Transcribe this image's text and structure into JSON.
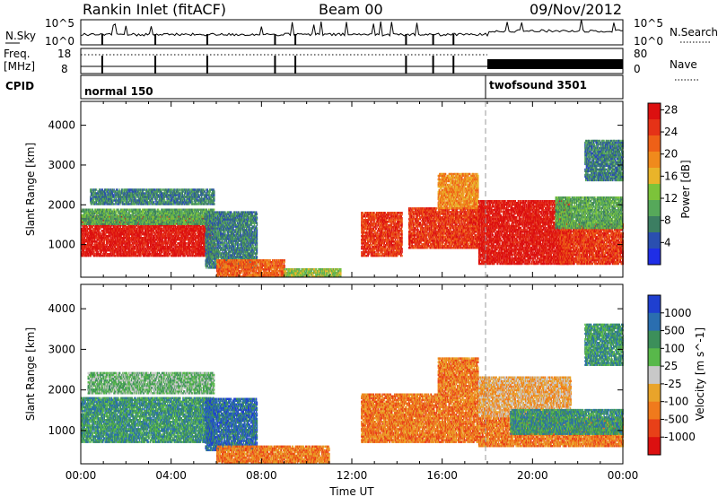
{
  "header": {
    "station": "Rankin Inlet (fitACF)",
    "beam": "Beam 00",
    "date": "09/Nov/2012"
  },
  "status_panel": {
    "nsky_label": "N.Sky",
    "nsky_ticks": [
      "10^5",
      "10^0"
    ],
    "nsearch_label": "N.Search",
    "nsearch_ticks": [
      "10^5",
      "10^0"
    ],
    "freq_label": "Freq.",
    "freq_unit": "[MHz]",
    "freq_ticks": [
      "18",
      "8"
    ],
    "nave_label": "Nave",
    "nave_ticks": [
      "80",
      "0"
    ],
    "cpid_label": "CPID",
    "modes": [
      {
        "name": "normal 150",
        "start_hour": 0
      },
      {
        "name": "twofsound 3501",
        "start_hour": 18
      }
    ]
  },
  "chart_data": [
    {
      "type": "heatmap",
      "name": "Power",
      "xlabel": "",
      "ylabel": "Slant Range [km]",
      "xlim_hours": [
        0,
        24
      ],
      "ylim_km": [
        180,
        4600
      ],
      "yticks": [
        "1000",
        "2000",
        "3000",
        "4000"
      ],
      "colorbar_label": "Power [dB]",
      "colorbar_ticks": [
        "4",
        "8",
        "12",
        "16",
        "20",
        "24",
        "28"
      ],
      "colorbar_colors": [
        "#1f2ee6",
        "#2a4fb0",
        "#3c7e62",
        "#56a85a",
        "#7cc33a",
        "#e9b42a",
        "#f08a1c",
        "#ee6017",
        "#e53217",
        "#dc1010"
      ],
      "regions": [
        {
          "t": [
            0.0,
            5.9
          ],
          "r": [
            700,
            1700
          ],
          "level": 9
        },
        {
          "t": [
            0.0,
            5.9
          ],
          "r": [
            1500,
            1900
          ],
          "level": 3
        },
        {
          "t": [
            0.4,
            5.9
          ],
          "r": [
            2000,
            2400
          ],
          "level": 2
        },
        {
          "t": [
            5.5,
            7.8
          ],
          "r": [
            400,
            1800
          ],
          "level": 2
        },
        {
          "t": [
            6.0,
            9.0
          ],
          "r": [
            180,
            600
          ],
          "level": 7
        },
        {
          "t": [
            9.0,
            11.5
          ],
          "r": [
            180,
            400
          ],
          "level": 4
        },
        {
          "t": [
            12.4,
            14.2
          ],
          "r": [
            700,
            1800
          ],
          "level": 8
        },
        {
          "t": [
            14.5,
            17.6
          ],
          "r": [
            900,
            1900
          ],
          "level": 8
        },
        {
          "t": [
            15.8,
            17.6
          ],
          "r": [
            1900,
            2800
          ],
          "level": 6
        },
        {
          "t": [
            17.6,
            21.7
          ],
          "r": [
            500,
            2100
          ],
          "level": 9
        },
        {
          "t": [
            21.2,
            24.0
          ],
          "r": [
            500,
            1500
          ],
          "level": 8
        },
        {
          "t": [
            21.0,
            24.0
          ],
          "r": [
            1400,
            2200
          ],
          "level": 3
        },
        {
          "t": [
            22.3,
            24.0
          ],
          "r": [
            2600,
            3600
          ],
          "level": 2
        }
      ]
    },
    {
      "type": "heatmap",
      "name": "Velocity",
      "xlabel": "Time UT",
      "ylabel": "Slant Range [km]",
      "xlim_hours": [
        0,
        24
      ],
      "ylim_km": [
        180,
        4600
      ],
      "xticks": [
        "00:00",
        "04:00",
        "08:00",
        "12:00",
        "16:00",
        "20:00",
        "00:00"
      ],
      "yticks": [
        "1000",
        "2000",
        "3000",
        "4000"
      ],
      "colorbar_label": "Velocity [m s^-1]",
      "colorbar_ticks": [
        "1000",
        "500",
        "100",
        "25",
        "-25",
        "-100",
        "-500",
        "-1000"
      ],
      "colorbar_colors": [
        "#1f3fd0",
        "#2a6eb0",
        "#3c8f5a",
        "#58b84a",
        "#c8c8c8",
        "#e9a42a",
        "#f07a1c",
        "#e84018",
        "#dc1010"
      ],
      "regions": [
        {
          "t": [
            0.0,
            5.9
          ],
          "r": [
            700,
            1800
          ],
          "level": 2
        },
        {
          "t": [
            0.3,
            5.9
          ],
          "r": [
            1900,
            2400
          ],
          "level": 3
        },
        {
          "t": [
            5.5,
            7.8
          ],
          "r": [
            500,
            1800
          ],
          "level": 1
        },
        {
          "t": [
            6.0,
            11.0
          ],
          "r": [
            180,
            600
          ],
          "level": 6
        },
        {
          "t": [
            12.4,
            17.6
          ],
          "r": [
            700,
            1900
          ],
          "level": 6
        },
        {
          "t": [
            15.8,
            17.6
          ],
          "r": [
            1900,
            2800
          ],
          "level": 6
        },
        {
          "t": [
            17.6,
            21.7
          ],
          "r": [
            1300,
            2300
          ],
          "level": 5
        },
        {
          "t": [
            17.6,
            24.0
          ],
          "r": [
            600,
            1300
          ],
          "level": 6
        },
        {
          "t": [
            19.0,
            24.0
          ],
          "r": [
            900,
            1500
          ],
          "level": 2
        },
        {
          "t": [
            22.3,
            24.0
          ],
          "r": [
            2600,
            3600
          ],
          "level": 2
        }
      ]
    }
  ]
}
